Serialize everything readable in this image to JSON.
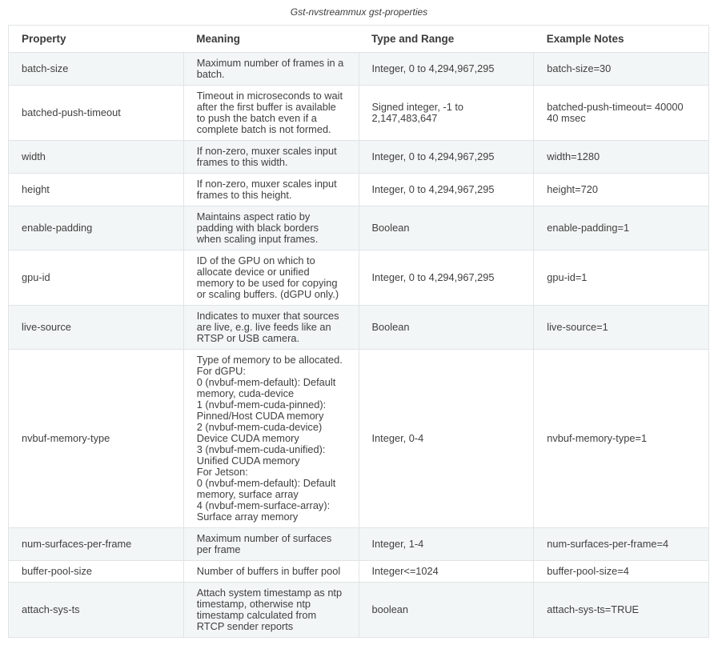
{
  "caption": "Gst-nvstreammux gst-properties",
  "colors": {
    "row_stripe": "#f3f6f6",
    "border": "#e1e4e5",
    "text": "#404040"
  },
  "table": {
    "headers": [
      "Property",
      "Meaning",
      "Type and Range",
      "Example Notes"
    ],
    "rows": [
      {
        "property": "batch-size",
        "meaning": "Maximum number of frames in a batch.",
        "type": "Integer, 0 to 4,294,967,295",
        "example": "batch-size=30"
      },
      {
        "property": "batched-push-timeout",
        "meaning": "Timeout in microseconds to wait after the first buffer is available to push the batch even if a complete batch is not formed.",
        "type": "Signed integer, -1 to 2,147,483,647",
        "example": "batched-push-timeout= 40000 40 msec"
      },
      {
        "property": "width",
        "meaning": "If non-zero, muxer scales input frames to this width.",
        "type": "Integer, 0 to 4,294,967,295",
        "example": "width=1280"
      },
      {
        "property": "height",
        "meaning": "If non-zero, muxer scales input frames to this height.",
        "type": "Integer, 0 to 4,294,967,295",
        "example": "height=720"
      },
      {
        "property": "enable-padding",
        "meaning": "Maintains aspect ratio by padding with black borders when scaling input frames.",
        "type": "Boolean",
        "example": "enable-padding=1"
      },
      {
        "property": "gpu-id",
        "meaning": "ID of the GPU on which to allocate device or unified memory to be used for copying or scaling buffers. (dGPU only.)",
        "type": "Integer, 0 to 4,294,967,295",
        "example": "gpu-id=1"
      },
      {
        "property": "live-source",
        "meaning": "Indicates to muxer that sources are live, e.g. live feeds like an RTSP or USB camera.",
        "type": "Boolean",
        "example": "live-source=1"
      },
      {
        "property": "nvbuf-memory-type",
        "meaning": "Type of memory to be allocated.\nFor dGPU:\n0 (nvbuf-mem-default): Default memory, cuda-device\n1 (nvbuf-mem-cuda-pinned): Pinned/Host CUDA memory\n2 (nvbuf-mem-cuda-device) Device CUDA memory\n3 (nvbuf-mem-cuda-unified): Unified CUDA memory\nFor Jetson:\n0 (nvbuf-mem-default): Default memory, surface array\n4 (nvbuf-mem-surface-array): Surface array memory",
        "type": "Integer, 0-4",
        "example": "nvbuf-memory-type=1"
      },
      {
        "property": "num-surfaces-per-frame",
        "meaning": "Maximum number of surfaces per frame",
        "type": "Integer, 1-4",
        "example": "num-surfaces-per-frame=4"
      },
      {
        "property": "buffer-pool-size",
        "meaning": "Number of buffers in buffer pool",
        "type": "Integer<=1024",
        "example": "buffer-pool-size=4"
      },
      {
        "property": "attach-sys-ts",
        "meaning": "Attach system timestamp as ntp timestamp, otherwise ntp timestamp calculated from RTCP sender reports",
        "type": "boolean",
        "example": "attach-sys-ts=TRUE"
      }
    ]
  }
}
